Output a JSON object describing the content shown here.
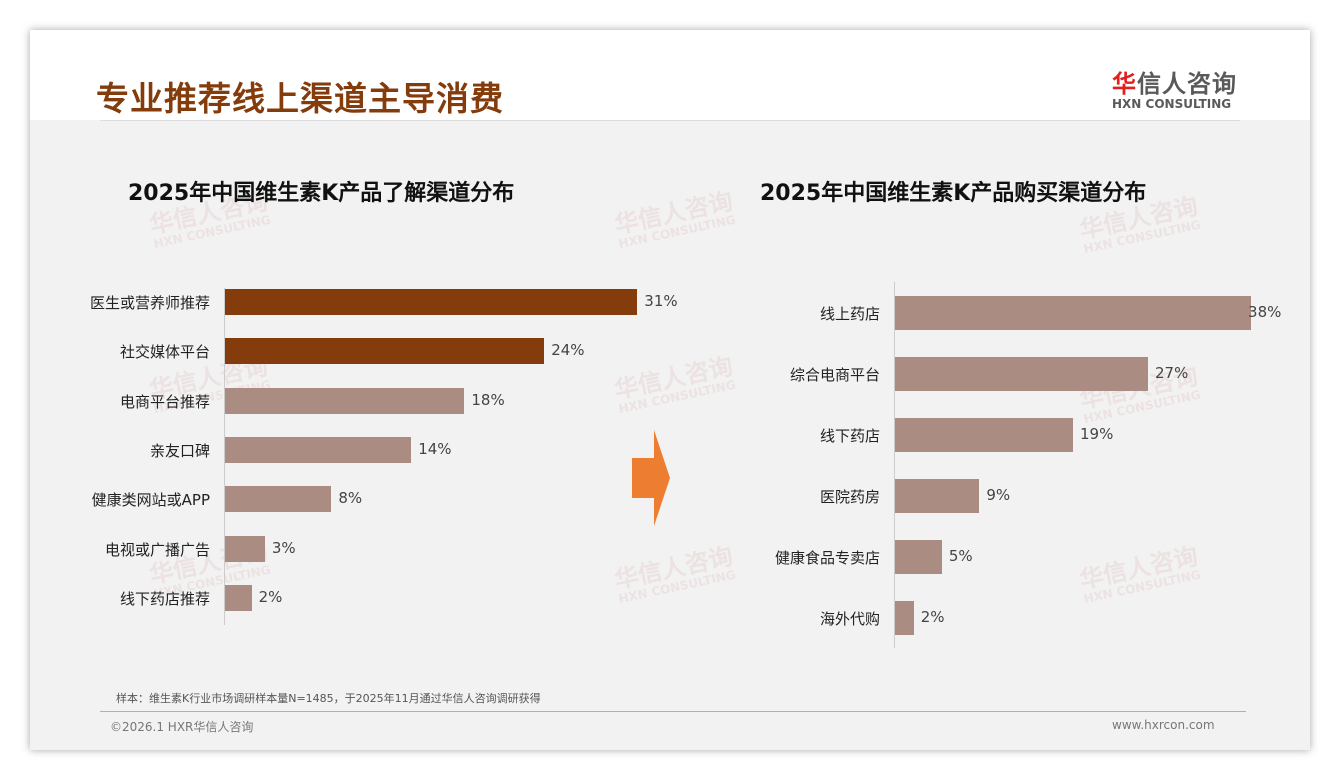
{
  "header": {
    "title": "专业推荐线上渠道主导消费",
    "logo_cn_red": "华",
    "logo_cn_rest": "信人咨询",
    "logo_en": "HXN CONSULTING"
  },
  "watermark": {
    "cn": "华信人咨询",
    "en": "HXN CONSULTING"
  },
  "chart_data": [
    {
      "type": "bar",
      "orientation": "horizontal",
      "title": "2025年中国维生素K产品了解渠道分布",
      "categories": [
        "医生或营养师推荐",
        "社交媒体平台",
        "电商平台推荐",
        "亲友口碑",
        "健康类网站或APP",
        "电视或广播广告",
        "线下药店推荐"
      ],
      "values": [
        31,
        24,
        18,
        14,
        8,
        3,
        2
      ],
      "labels": [
        "31%",
        "24%",
        "18%",
        "14%",
        "8%",
        "3%",
        "2%"
      ],
      "highlight": [
        true,
        true,
        false,
        false,
        false,
        false,
        false
      ],
      "unit": "%",
      "xlim": [
        0,
        31
      ]
    },
    {
      "type": "bar",
      "orientation": "horizontal",
      "title": "2025年中国维生素K产品购买渠道分布",
      "categories": [
        "线上药店",
        "综合电商平台",
        "线下药店",
        "医院药房",
        "健康食品专卖店",
        "海外代购"
      ],
      "values": [
        38,
        27,
        19,
        9,
        5,
        2
      ],
      "labels": [
        "38%",
        "27%",
        "19%",
        "9%",
        "5%",
        "2%"
      ],
      "highlight": [
        false,
        false,
        false,
        false,
        false,
        false
      ],
      "unit": "%",
      "xlim": [
        0,
        38
      ]
    }
  ],
  "colors": {
    "highlight": "#843c0c",
    "normal": "#ab8c82",
    "arrow": "#ed7d31",
    "title": "#843c0c"
  },
  "footer": {
    "note": "样本：维生素K行业市场调研样本量N=1485，于2025年11月通过华信人咨询调研获得",
    "copyright": "©2026.1 HXR华信人咨询",
    "website": "www.hxrcon.com"
  }
}
